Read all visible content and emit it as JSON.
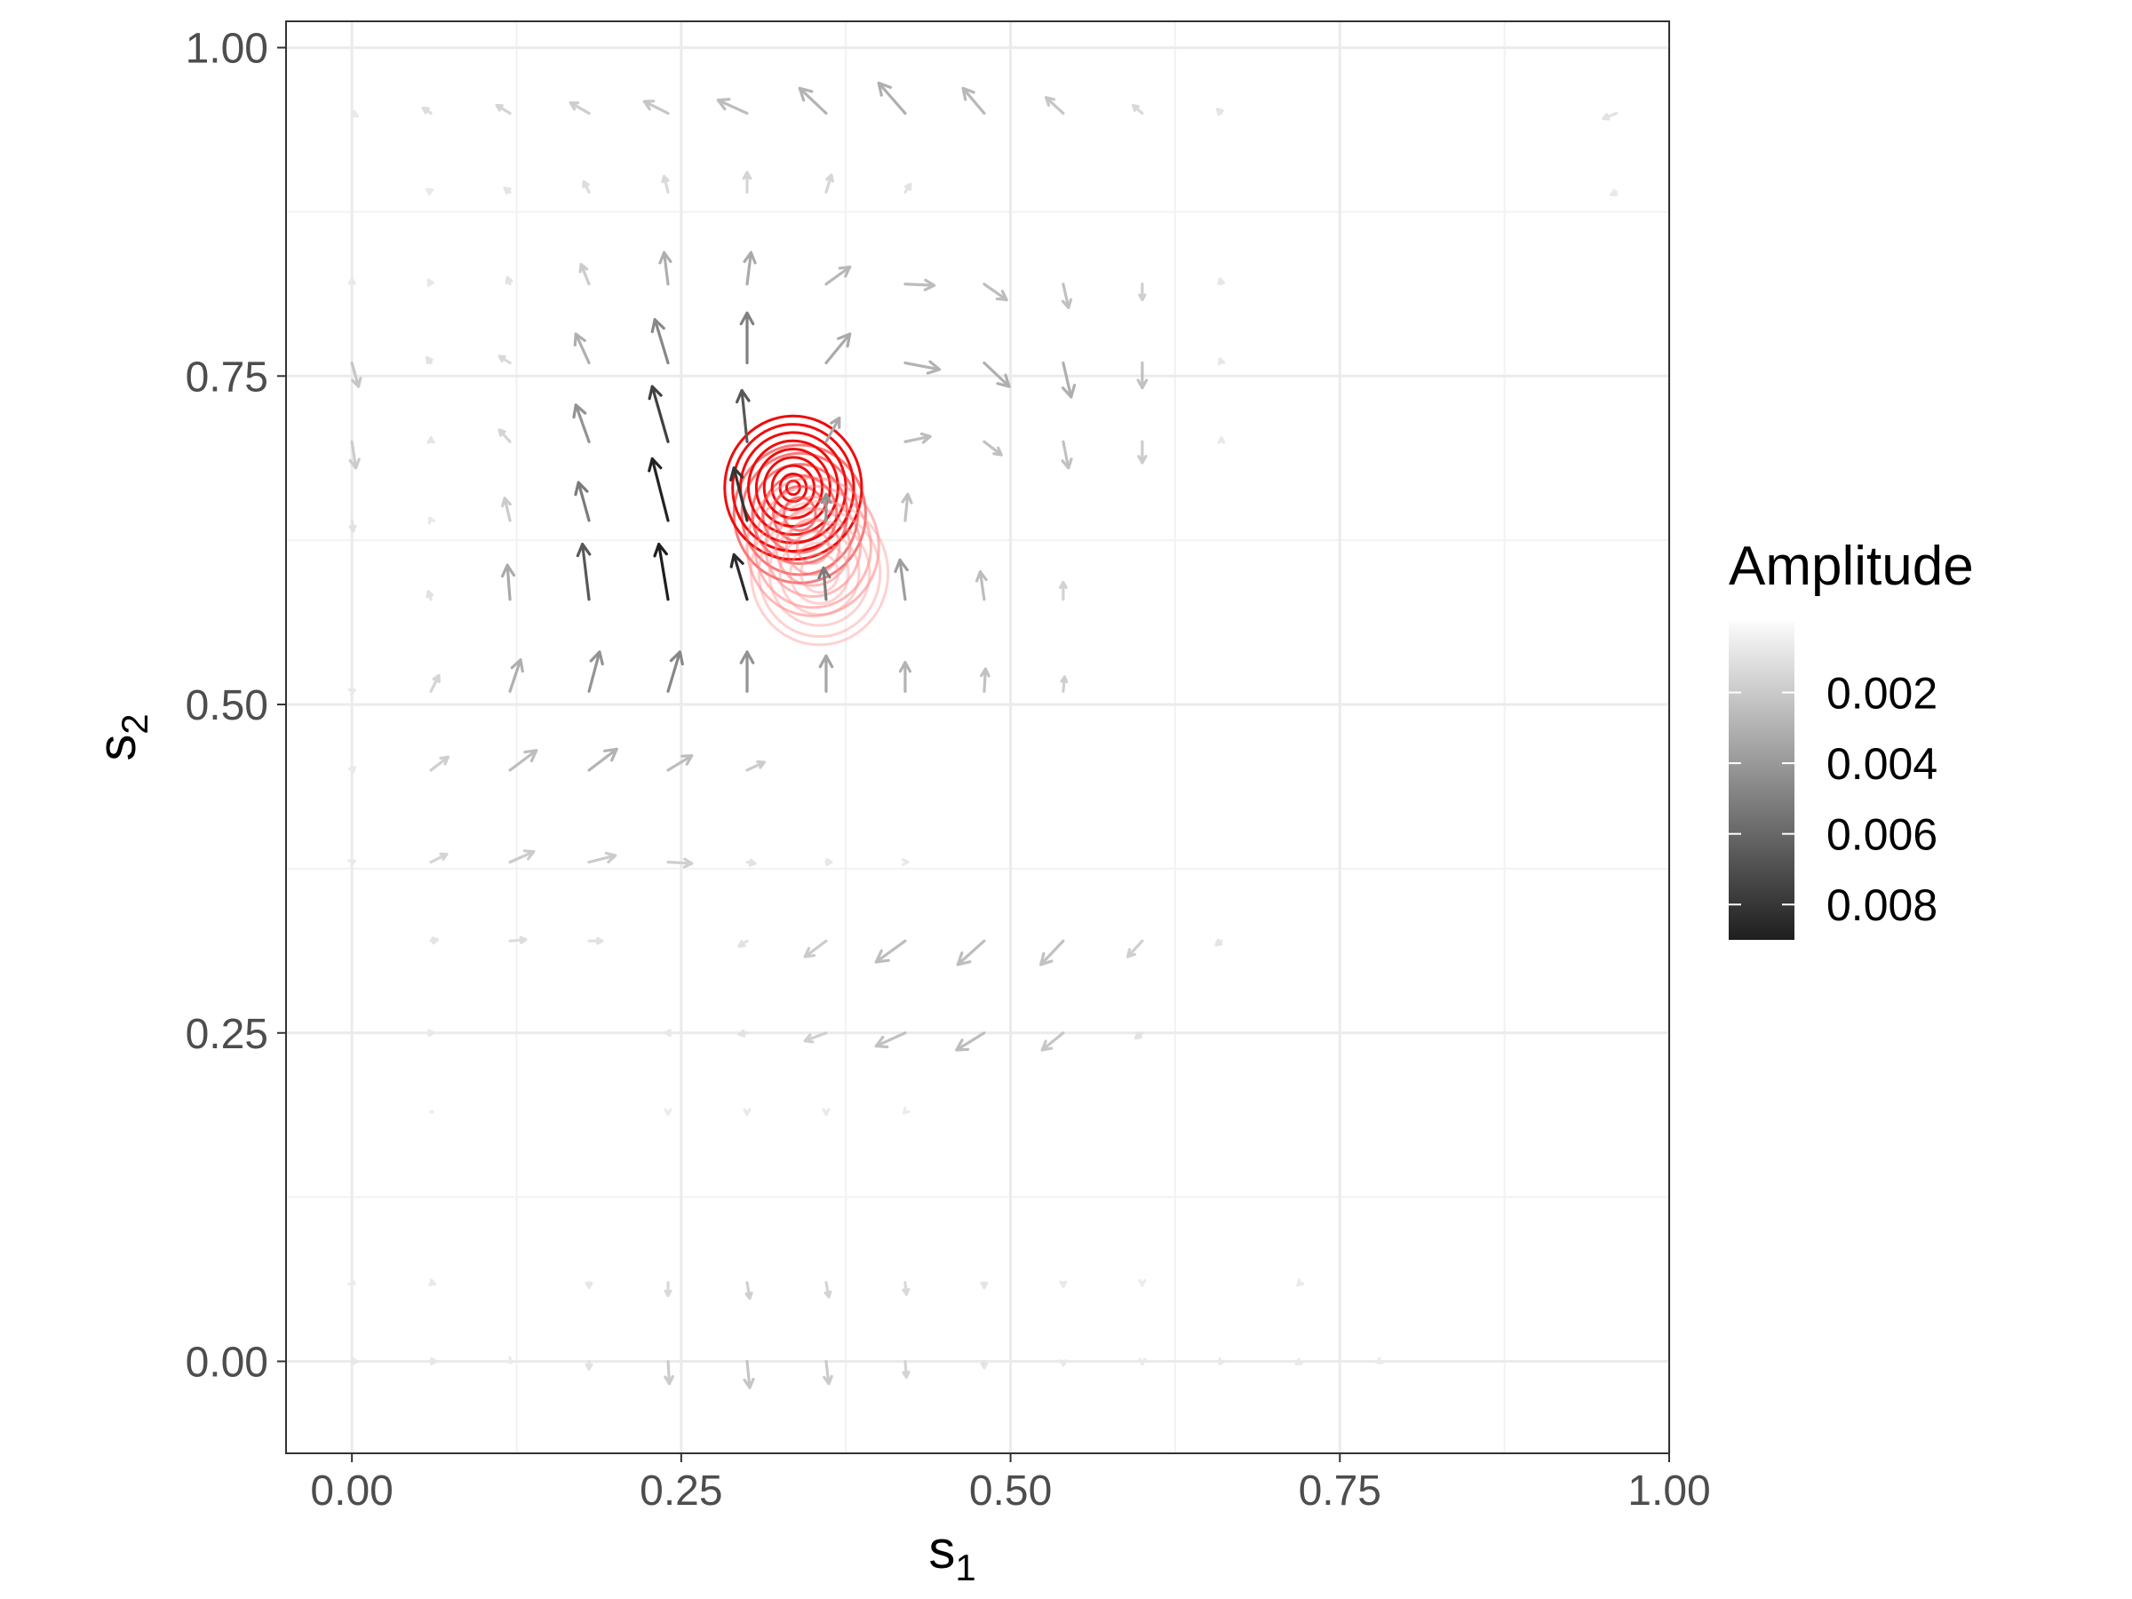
{
  "chart_data": {
    "type": "quiver-contour",
    "xlabel": "s",
    "xlabel_sub": "1",
    "ylabel": "s",
    "ylabel_sub": "2",
    "xlim": [
      -0.05,
      1.0
    ],
    "ylim": [
      -0.07,
      1.02
    ],
    "xticks": [
      0.0,
      0.25,
      0.5,
      0.75,
      1.0
    ],
    "yticks": [
      0.0,
      0.25,
      0.5,
      0.75,
      1.0
    ],
    "xtick_labels": [
      "0.00",
      "0.25",
      "0.50",
      "0.75",
      "1.00"
    ],
    "ytick_labels": [
      "0.00",
      "0.25",
      "0.50",
      "0.75",
      "1.00"
    ],
    "grid": true,
    "legend": {
      "title": "Amplitude",
      "position": "right",
      "labels": [
        "0.002",
        "0.004",
        "0.006",
        "0.008"
      ],
      "values": [
        0.002,
        0.004,
        0.006,
        0.008
      ],
      "range": [
        0.0,
        0.009
      ],
      "colors": [
        "#ffffff",
        "#1f1f1f"
      ]
    },
    "grid_cols": 17,
    "grid_rows": 17,
    "vectors": [
      {
        "x": 0.0,
        "y": 0.95,
        "dx": 0.004,
        "dy": -0.002,
        "amp": 0.0003
      },
      {
        "x": 0.06,
        "y": 0.95,
        "dx": -0.006,
        "dy": 0.004,
        "amp": 0.0008
      },
      {
        "x": 0.12,
        "y": 0.95,
        "dx": -0.01,
        "dy": 0.006,
        "amp": 0.0012
      },
      {
        "x": 0.18,
        "y": 0.95,
        "dx": -0.014,
        "dy": 0.008,
        "amp": 0.0015
      },
      {
        "x": 0.24,
        "y": 0.95,
        "dx": -0.018,
        "dy": 0.009,
        "amp": 0.0018
      },
      {
        "x": 0.3,
        "y": 0.95,
        "dx": -0.022,
        "dy": 0.01,
        "amp": 0.0022
      },
      {
        "x": 0.36,
        "y": 0.95,
        "dx": -0.02,
        "dy": 0.019,
        "amp": 0.0026
      },
      {
        "x": 0.42,
        "y": 0.95,
        "dx": -0.02,
        "dy": 0.023,
        "amp": 0.0028
      },
      {
        "x": 0.48,
        "y": 0.95,
        "dx": -0.016,
        "dy": 0.019,
        "amp": 0.0024
      },
      {
        "x": 0.54,
        "y": 0.95,
        "dx": -0.013,
        "dy": 0.012,
        "amp": 0.0018
      },
      {
        "x": 0.6,
        "y": 0.95,
        "dx": -0.007,
        "dy": 0.006,
        "amp": 0.001
      },
      {
        "x": 0.66,
        "y": 0.95,
        "dx": -0.003,
        "dy": 0.003,
        "amp": 0.0005
      },
      {
        "x": 0.96,
        "y": 0.95,
        "dx": -0.01,
        "dy": -0.004,
        "amp": 0.0006
      },
      {
        "x": 0.06,
        "y": 0.89,
        "dx": -0.003,
        "dy": 0.002,
        "amp": 0.0003
      },
      {
        "x": 0.12,
        "y": 0.89,
        "dx": -0.004,
        "dy": 0.003,
        "amp": 0.0005
      },
      {
        "x": 0.18,
        "y": 0.89,
        "dx": -0.004,
        "dy": 0.008,
        "amp": 0.0008
      },
      {
        "x": 0.24,
        "y": 0.89,
        "dx": -0.003,
        "dy": 0.012,
        "amp": 0.001
      },
      {
        "x": 0.3,
        "y": 0.89,
        "dx": 0.0,
        "dy": 0.015,
        "amp": 0.0012
      },
      {
        "x": 0.36,
        "y": 0.89,
        "dx": 0.004,
        "dy": 0.013,
        "amp": 0.0011
      },
      {
        "x": 0.42,
        "y": 0.89,
        "dx": 0.004,
        "dy": 0.006,
        "amp": 0.0006
      },
      {
        "x": 0.96,
        "y": 0.89,
        "dx": -0.004,
        "dy": -0.002,
        "amp": 0.0003
      },
      {
        "x": 0.0,
        "y": 0.82,
        "dx": 0.0,
        "dy": 0.004,
        "amp": 0.0003
      },
      {
        "x": 0.06,
        "y": 0.82,
        "dx": -0.002,
        "dy": 0.003,
        "amp": 0.0004
      },
      {
        "x": 0.12,
        "y": 0.82,
        "dx": -0.002,
        "dy": 0.005,
        "amp": 0.0006
      },
      {
        "x": 0.18,
        "y": 0.82,
        "dx": -0.006,
        "dy": 0.015,
        "amp": 0.0016
      },
      {
        "x": 0.24,
        "y": 0.82,
        "dx": -0.003,
        "dy": 0.024,
        "amp": 0.0028
      },
      {
        "x": 0.3,
        "y": 0.82,
        "dx": 0.003,
        "dy": 0.024,
        "amp": 0.003
      },
      {
        "x": 0.36,
        "y": 0.82,
        "dx": 0.018,
        "dy": 0.013,
        "amp": 0.0024
      },
      {
        "x": 0.42,
        "y": 0.82,
        "dx": 0.022,
        "dy": -0.001,
        "amp": 0.0022
      },
      {
        "x": 0.48,
        "y": 0.82,
        "dx": 0.017,
        "dy": -0.012,
        "amp": 0.0022
      },
      {
        "x": 0.54,
        "y": 0.82,
        "dx": 0.004,
        "dy": -0.018,
        "amp": 0.002
      },
      {
        "x": 0.6,
        "y": 0.82,
        "dx": 0.0,
        "dy": -0.012,
        "amp": 0.0014
      },
      {
        "x": 0.66,
        "y": 0.82,
        "dx": -0.001,
        "dy": 0.004,
        "amp": 0.0004
      },
      {
        "x": 0.0,
        "y": 0.76,
        "dx": 0.005,
        "dy": -0.018,
        "amp": 0.0018
      },
      {
        "x": 0.06,
        "y": 0.76,
        "dx": -0.003,
        "dy": 0.004,
        "amp": 0.0006
      },
      {
        "x": 0.12,
        "y": 0.76,
        "dx": -0.008,
        "dy": 0.005,
        "amp": 0.001
      },
      {
        "x": 0.18,
        "y": 0.76,
        "dx": -0.01,
        "dy": 0.022,
        "amp": 0.0028
      },
      {
        "x": 0.24,
        "y": 0.76,
        "dx": -0.01,
        "dy": 0.033,
        "amp": 0.0045
      },
      {
        "x": 0.3,
        "y": 0.76,
        "dx": 0.0,
        "dy": 0.038,
        "amp": 0.0048
      },
      {
        "x": 0.36,
        "y": 0.76,
        "dx": 0.018,
        "dy": 0.022,
        "amp": 0.003
      },
      {
        "x": 0.42,
        "y": 0.76,
        "dx": 0.026,
        "dy": -0.005,
        "amp": 0.0026
      },
      {
        "x": 0.48,
        "y": 0.76,
        "dx": 0.019,
        "dy": -0.018,
        "amp": 0.0028
      },
      {
        "x": 0.54,
        "y": 0.76,
        "dx": 0.006,
        "dy": -0.026,
        "amp": 0.0028
      },
      {
        "x": 0.6,
        "y": 0.76,
        "dx": 0.0,
        "dy": -0.019,
        "amp": 0.002
      },
      {
        "x": 0.66,
        "y": 0.76,
        "dx": -0.001,
        "dy": 0.003,
        "amp": 0.0004
      },
      {
        "x": 0.0,
        "y": 0.7,
        "dx": 0.003,
        "dy": -0.02,
        "amp": 0.0016
      },
      {
        "x": 0.06,
        "y": 0.7,
        "dx": 0.0,
        "dy": 0.003,
        "amp": 0.0005
      },
      {
        "x": 0.12,
        "y": 0.7,
        "dx": -0.008,
        "dy": 0.009,
        "amp": 0.0012
      },
      {
        "x": 0.18,
        "y": 0.7,
        "dx": -0.01,
        "dy": 0.028,
        "amp": 0.004
      },
      {
        "x": 0.24,
        "y": 0.7,
        "dx": -0.012,
        "dy": 0.042,
        "amp": 0.0075
      },
      {
        "x": 0.3,
        "y": 0.7,
        "dx": -0.004,
        "dy": 0.039,
        "amp": 0.0065
      },
      {
        "x": 0.36,
        "y": 0.7,
        "dx": 0.01,
        "dy": 0.018,
        "amp": 0.003
      },
      {
        "x": 0.42,
        "y": 0.7,
        "dx": 0.019,
        "dy": 0.004,
        "amp": 0.0022
      },
      {
        "x": 0.48,
        "y": 0.7,
        "dx": 0.013,
        "dy": -0.01,
        "amp": 0.002
      },
      {
        "x": 0.54,
        "y": 0.7,
        "dx": 0.004,
        "dy": -0.02,
        "amp": 0.002
      },
      {
        "x": 0.6,
        "y": 0.7,
        "dx": 0.0,
        "dy": -0.016,
        "amp": 0.0016
      },
      {
        "x": 0.66,
        "y": 0.7,
        "dx": 0.0,
        "dy": 0.003,
        "amp": 0.0003
      },
      {
        "x": 0.0,
        "y": 0.64,
        "dx": 0.001,
        "dy": -0.008,
        "amp": 0.0006
      },
      {
        "x": 0.06,
        "y": 0.64,
        "dx": -0.001,
        "dy": 0.002,
        "amp": 0.0003
      },
      {
        "x": 0.12,
        "y": 0.64,
        "dx": -0.004,
        "dy": 0.017,
        "amp": 0.0016
      },
      {
        "x": 0.18,
        "y": 0.64,
        "dx": -0.008,
        "dy": 0.029,
        "amp": 0.005
      },
      {
        "x": 0.24,
        "y": 0.64,
        "dx": -0.012,
        "dy": 0.047,
        "amp": 0.0088
      },
      {
        "x": 0.3,
        "y": 0.64,
        "dx": -0.01,
        "dy": 0.04,
        "amp": 0.008
      },
      {
        "x": 0.36,
        "y": 0.64,
        "dx": 0.0,
        "dy": 0.02,
        "amp": 0.004
      },
      {
        "x": 0.42,
        "y": 0.64,
        "dx": 0.002,
        "dy": 0.02,
        "amp": 0.002
      },
      {
        "x": 0.06,
        "y": 0.58,
        "dx": -0.002,
        "dy": 0.006,
        "amp": 0.0006
      },
      {
        "x": 0.12,
        "y": 0.58,
        "dx": -0.002,
        "dy": 0.026,
        "amp": 0.003
      },
      {
        "x": 0.18,
        "y": 0.58,
        "dx": -0.005,
        "dy": 0.042,
        "amp": 0.0065
      },
      {
        "x": 0.24,
        "y": 0.58,
        "dx": -0.007,
        "dy": 0.042,
        "amp": 0.009
      },
      {
        "x": 0.3,
        "y": 0.58,
        "dx": -0.01,
        "dy": 0.034,
        "amp": 0.0085
      },
      {
        "x": 0.36,
        "y": 0.58,
        "dx": -0.002,
        "dy": 0.024,
        "amp": 0.005
      },
      {
        "x": 0.42,
        "y": 0.58,
        "dx": -0.004,
        "dy": 0.03,
        "amp": 0.0035
      },
      {
        "x": 0.48,
        "y": 0.58,
        "dx": -0.003,
        "dy": 0.021,
        "amp": 0.0022
      },
      {
        "x": 0.54,
        "y": 0.58,
        "dx": 0.0,
        "dy": 0.013,
        "amp": 0.0013
      },
      {
        "x": 0.0,
        "y": 0.51,
        "dx": 0.002,
        "dy": 0.001,
        "amp": 0.0003
      },
      {
        "x": 0.06,
        "y": 0.51,
        "dx": 0.006,
        "dy": 0.012,
        "amp": 0.0012
      },
      {
        "x": 0.12,
        "y": 0.51,
        "dx": 0.008,
        "dy": 0.024,
        "amp": 0.0028
      },
      {
        "x": 0.18,
        "y": 0.51,
        "dx": 0.008,
        "dy": 0.03,
        "amp": 0.004
      },
      {
        "x": 0.24,
        "y": 0.51,
        "dx": 0.009,
        "dy": 0.03,
        "amp": 0.0045
      },
      {
        "x": 0.3,
        "y": 0.51,
        "dx": 0.0,
        "dy": 0.03,
        "amp": 0.004
      },
      {
        "x": 0.36,
        "y": 0.51,
        "dx": 0.0,
        "dy": 0.027,
        "amp": 0.0032
      },
      {
        "x": 0.42,
        "y": 0.51,
        "dx": 0.0,
        "dy": 0.022,
        "amp": 0.0026
      },
      {
        "x": 0.48,
        "y": 0.51,
        "dx": 0.001,
        "dy": 0.017,
        "amp": 0.002
      },
      {
        "x": 0.54,
        "y": 0.51,
        "dx": 0.001,
        "dy": 0.011,
        "amp": 0.0014
      },
      {
        "x": 0.0,
        "y": 0.45,
        "dx": 0.002,
        "dy": 0.002,
        "amp": 0.0003
      },
      {
        "x": 0.06,
        "y": 0.45,
        "dx": 0.013,
        "dy": 0.01,
        "amp": 0.0014
      },
      {
        "x": 0.12,
        "y": 0.45,
        "dx": 0.02,
        "dy": 0.015,
        "amp": 0.0022
      },
      {
        "x": 0.18,
        "y": 0.45,
        "dx": 0.021,
        "dy": 0.016,
        "amp": 0.0026
      },
      {
        "x": 0.24,
        "y": 0.45,
        "dx": 0.018,
        "dy": 0.011,
        "amp": 0.0022
      },
      {
        "x": 0.3,
        "y": 0.45,
        "dx": 0.013,
        "dy": 0.006,
        "amp": 0.0016
      },
      {
        "x": 0.0,
        "y": 0.38,
        "dx": 0.002,
        "dy": 0.001,
        "amp": 0.0003
      },
      {
        "x": 0.06,
        "y": 0.38,
        "dx": 0.012,
        "dy": 0.006,
        "amp": 0.0012
      },
      {
        "x": 0.12,
        "y": 0.38,
        "dx": 0.018,
        "dy": 0.008,
        "amp": 0.0016
      },
      {
        "x": 0.18,
        "y": 0.38,
        "dx": 0.02,
        "dy": 0.005,
        "amp": 0.0016
      },
      {
        "x": 0.24,
        "y": 0.38,
        "dx": 0.018,
        "dy": -0.001,
        "amp": 0.0014
      },
      {
        "x": 0.3,
        "y": 0.38,
        "dx": 0.006,
        "dy": -0.001,
        "amp": 0.0006
      },
      {
        "x": 0.36,
        "y": 0.38,
        "dx": 0.004,
        "dy": 0.0,
        "amp": 0.0004
      },
      {
        "x": 0.42,
        "y": 0.38,
        "dx": 0.002,
        "dy": 0.0,
        "amp": 0.0003
      },
      {
        "x": 0.06,
        "y": 0.32,
        "dx": 0.005,
        "dy": 0.001,
        "amp": 0.0005
      },
      {
        "x": 0.12,
        "y": 0.32,
        "dx": 0.012,
        "dy": 0.001,
        "amp": 0.0008
      },
      {
        "x": 0.18,
        "y": 0.32,
        "dx": 0.01,
        "dy": 0.0,
        "amp": 0.0006
      },
      {
        "x": 0.3,
        "y": 0.32,
        "dx": -0.006,
        "dy": -0.004,
        "amp": 0.0006
      },
      {
        "x": 0.36,
        "y": 0.32,
        "dx": -0.016,
        "dy": -0.012,
        "amp": 0.0016
      },
      {
        "x": 0.42,
        "y": 0.32,
        "dx": -0.022,
        "dy": -0.016,
        "amp": 0.0022
      },
      {
        "x": 0.48,
        "y": 0.32,
        "dx": -0.02,
        "dy": -0.018,
        "amp": 0.0022
      },
      {
        "x": 0.54,
        "y": 0.32,
        "dx": -0.017,
        "dy": -0.018,
        "amp": 0.002
      },
      {
        "x": 0.6,
        "y": 0.32,
        "dx": -0.011,
        "dy": -0.012,
        "amp": 0.0014
      },
      {
        "x": 0.66,
        "y": 0.32,
        "dx": -0.004,
        "dy": -0.003,
        "amp": 0.0005
      },
      {
        "x": 0.06,
        "y": 0.25,
        "dx": 0.002,
        "dy": 0.0,
        "amp": 0.0003
      },
      {
        "x": 0.24,
        "y": 0.25,
        "dx": -0.002,
        "dy": 0.0,
        "amp": 0.0003
      },
      {
        "x": 0.3,
        "y": 0.25,
        "dx": -0.006,
        "dy": -0.001,
        "amp": 0.0006
      },
      {
        "x": 0.36,
        "y": 0.25,
        "dx": -0.016,
        "dy": -0.006,
        "amp": 0.0014
      },
      {
        "x": 0.42,
        "y": 0.25,
        "dx": -0.022,
        "dy": -0.01,
        "amp": 0.002
      },
      {
        "x": 0.48,
        "y": 0.25,
        "dx": -0.021,
        "dy": -0.013,
        "amp": 0.0022
      },
      {
        "x": 0.54,
        "y": 0.25,
        "dx": -0.016,
        "dy": -0.013,
        "amp": 0.0018
      },
      {
        "x": 0.6,
        "y": 0.25,
        "dx": -0.005,
        "dy": -0.004,
        "amp": 0.0006
      },
      {
        "x": 0.06,
        "y": 0.19,
        "dx": 0.001,
        "dy": 0.0,
        "amp": 0.0002
      },
      {
        "x": 0.24,
        "y": 0.19,
        "dx": 0.0,
        "dy": -0.002,
        "amp": 0.0002
      },
      {
        "x": 0.3,
        "y": 0.19,
        "dx": 0.0,
        "dy": -0.002,
        "amp": 0.0003
      },
      {
        "x": 0.36,
        "y": 0.19,
        "dx": 0.0,
        "dy": -0.002,
        "amp": 0.0003
      },
      {
        "x": 0.42,
        "y": 0.19,
        "dx": -0.001,
        "dy": -0.001,
        "amp": 0.0002
      },
      {
        "x": 0.0,
        "y": 0.06,
        "dx": 0.002,
        "dy": -0.001,
        "amp": 0.0002
      },
      {
        "x": 0.06,
        "y": 0.06,
        "dx": 0.003,
        "dy": -0.001,
        "amp": 0.0003
      },
      {
        "x": 0.18,
        "y": 0.06,
        "dx": 0.0,
        "dy": -0.004,
        "amp": 0.0004
      },
      {
        "x": 0.24,
        "y": 0.06,
        "dx": 0.0,
        "dy": -0.01,
        "amp": 0.001
      },
      {
        "x": 0.3,
        "y": 0.06,
        "dx": 0.002,
        "dy": -0.012,
        "amp": 0.0014
      },
      {
        "x": 0.36,
        "y": 0.06,
        "dx": 0.002,
        "dy": -0.011,
        "amp": 0.0012
      },
      {
        "x": 0.42,
        "y": 0.06,
        "dx": 0.001,
        "dy": -0.009,
        "amp": 0.001
      },
      {
        "x": 0.48,
        "y": 0.06,
        "dx": 0.0,
        "dy": -0.004,
        "amp": 0.0005
      },
      {
        "x": 0.54,
        "y": 0.06,
        "dx": 0.0,
        "dy": -0.003,
        "amp": 0.0003
      },
      {
        "x": 0.6,
        "y": 0.06,
        "dx": 0.0,
        "dy": -0.002,
        "amp": 0.0002
      },
      {
        "x": 0.72,
        "y": 0.06,
        "dx": -0.002,
        "dy": -0.002,
        "amp": 0.0002
      },
      {
        "x": 0.0,
        "y": 0.0,
        "dx": 0.004,
        "dy": 0.0,
        "amp": 0.0004
      },
      {
        "x": 0.06,
        "y": 0.0,
        "dx": 0.004,
        "dy": 0.0,
        "amp": 0.0004
      },
      {
        "x": 0.12,
        "y": 0.0,
        "dx": 0.001,
        "dy": -0.001,
        "amp": 0.0002
      },
      {
        "x": 0.18,
        "y": 0.0,
        "dx": 0.0,
        "dy": -0.006,
        "amp": 0.0006
      },
      {
        "x": 0.24,
        "y": 0.0,
        "dx": 0.001,
        "dy": -0.017,
        "amp": 0.0016
      },
      {
        "x": 0.3,
        "y": 0.0,
        "dx": 0.002,
        "dy": -0.02,
        "amp": 0.0018
      },
      {
        "x": 0.36,
        "y": 0.0,
        "dx": 0.002,
        "dy": -0.017,
        "amp": 0.0016
      },
      {
        "x": 0.42,
        "y": 0.0,
        "dx": 0.001,
        "dy": -0.012,
        "amp": 0.0012
      },
      {
        "x": 0.48,
        "y": 0.0,
        "dx": 0.0,
        "dy": -0.005,
        "amp": 0.0005
      },
      {
        "x": 0.54,
        "y": 0.0,
        "dx": 0.0,
        "dy": -0.003,
        "amp": 0.0003
      },
      {
        "x": 0.6,
        "y": 0.0,
        "dx": 0.0,
        "dy": -0.002,
        "amp": 0.0003
      },
      {
        "x": 0.66,
        "y": 0.0,
        "dx": -0.001,
        "dy": -0.002,
        "amp": 0.0003
      },
      {
        "x": 0.72,
        "y": 0.0,
        "dx": -0.003,
        "dy": -0.002,
        "amp": 0.0003
      },
      {
        "x": 0.78,
        "y": 0.0,
        "dx": -0.002,
        "dy": -0.001,
        "amp": 0.0002
      }
    ],
    "contours": [
      {
        "cx": 0.335,
        "cy": 0.665,
        "radii": [
          0.005,
          0.01,
          0.016,
          0.022,
          0.028,
          0.034,
          0.04,
          0.046,
          0.052
        ],
        "color": "#ee0000",
        "opacity": 0.95
      },
      {
        "cx": 0.34,
        "cy": 0.645,
        "radii": [
          0.012,
          0.02,
          0.028,
          0.036,
          0.044,
          0.05
        ],
        "color": "#ee1111",
        "opacity": 0.55
      },
      {
        "cx": 0.35,
        "cy": 0.62,
        "radii": [
          0.012,
          0.02,
          0.028,
          0.036,
          0.044,
          0.05
        ],
        "color": "#ff6666",
        "opacity": 0.45
      },
      {
        "cx": 0.355,
        "cy": 0.6,
        "radii": [
          0.014,
          0.022,
          0.03,
          0.038,
          0.046,
          0.052
        ],
        "color": "#ff9999",
        "opacity": 0.45
      }
    ]
  }
}
